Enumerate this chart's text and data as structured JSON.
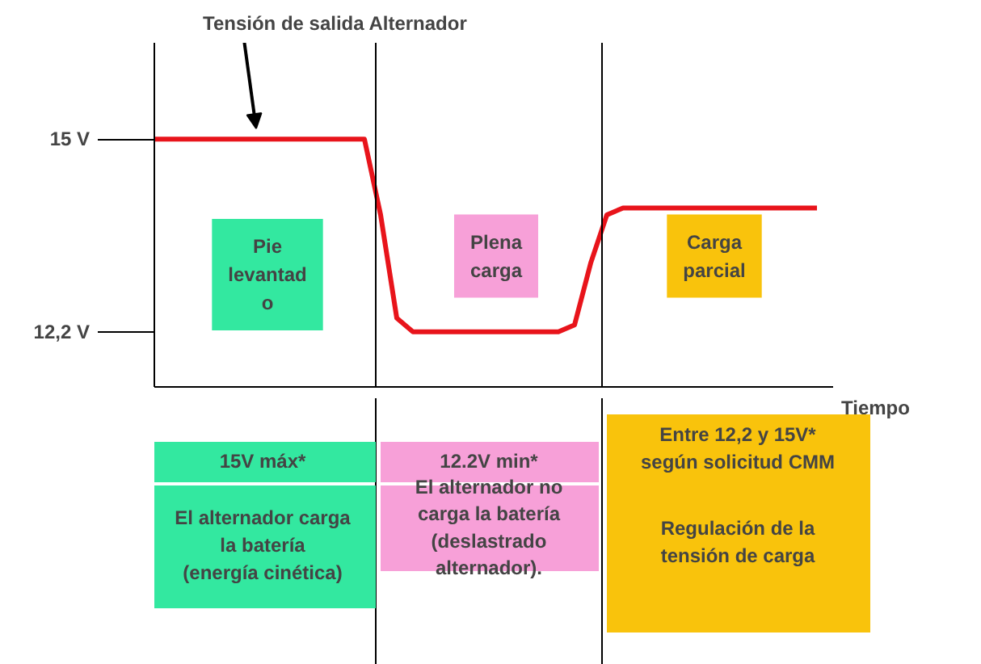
{
  "chart_data": {
    "type": "line",
    "title": "Tensión de salida Alternador",
    "xlabel": "Tiempo",
    "categories": [
      null,
      null,
      null,
      null,
      null,
      null,
      null,
      null,
      null,
      null,
      null,
      null,
      null,
      null,
      null,
      null,
      null,
      null,
      null,
      null,
      null,
      null,
      null,
      null,
      null,
      null,
      null,
      null,
      null,
      null,
      null,
      null,
      null,
      null,
      null,
      null,
      null,
      null,
      null,
      null,
      null,
      null
    ],
    "series": [
      {
        "color": "#e8141b",
        "values": [
          15,
          15,
          15,
          15,
          15,
          15,
          15,
          15,
          15,
          15,
          15,
          15,
          15,
          15,
          13.9,
          12.4,
          12.2,
          12.2,
          12.2,
          12.2,
          12.2,
          12.2,
          12.2,
          12.2,
          12.2,
          12.2,
          12.3,
          13.2,
          13.9,
          14.0,
          14.0,
          14.0,
          14.0,
          14.0,
          14.0,
          14.0,
          14.0,
          14.0,
          14.0,
          14.0,
          14.0,
          14.0
        ]
      }
    ],
    "ylim": [
      11.4,
      16.4
    ],
    "yticks": [
      {
        "value": 15,
        "label": "15 V"
      },
      {
        "value": 12.2,
        "label": "12,2 V"
      }
    ],
    "tick_labels": "y",
    "grid": false,
    "annotations": [
      "Pie\nlevantad\no",
      "Plena\ncarga",
      "Carga\nparcial",
      "15V máx*",
      "El alternador carga\nla batería\n(energía cinética)",
      "12.2V min*",
      "El alternador no\ncarga la batería\n(deslastrado\nalternador).",
      "Entre 12,2 y 15V*\nsegún solicitud CMM",
      "Regulación de la\ntensión de carga"
    ]
  }
}
